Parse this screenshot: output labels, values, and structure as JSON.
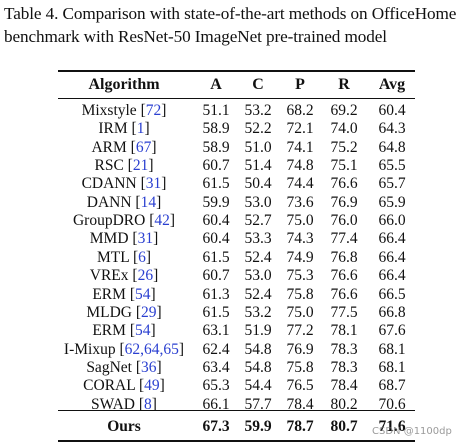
{
  "caption": {
    "line1": "Table 4. Comparison with state-of-the-art methods on OfficeHome",
    "line2": "benchmark with ResNet-50 ImageNet pre-trained model"
  },
  "headers": [
    "Algorithm",
    "A",
    "C",
    "P",
    "R",
    "Avg"
  ],
  "rows": [
    {
      "name": "Mixstyle",
      "ref": "72",
      "values": [
        "51.1",
        "53.2",
        "68.2",
        "69.2",
        "60.4"
      ]
    },
    {
      "name": "IRM",
      "ref": "1",
      "values": [
        "58.9",
        "52.2",
        "72.1",
        "74.0",
        "64.3"
      ]
    },
    {
      "name": "ARM",
      "ref": "67",
      "values": [
        "58.9",
        "51.0",
        "74.1",
        "75.2",
        "64.8"
      ]
    },
    {
      "name": "RSC",
      "ref": "21",
      "values": [
        "60.7",
        "51.4",
        "74.8",
        "75.1",
        "65.5"
      ]
    },
    {
      "name": "CDANN",
      "ref": "31",
      "values": [
        "61.5",
        "50.4",
        "74.4",
        "76.6",
        "65.7"
      ]
    },
    {
      "name": "DANN",
      "ref": "14",
      "values": [
        "59.9",
        "53.0",
        "73.6",
        "76.9",
        "65.9"
      ]
    },
    {
      "name": "GroupDRO",
      "ref": "42",
      "values": [
        "60.4",
        "52.7",
        "75.0",
        "76.0",
        "66.0"
      ]
    },
    {
      "name": "MMD",
      "ref": "31",
      "values": [
        "60.4",
        "53.3",
        "74.3",
        "77.4",
        "66.4"
      ]
    },
    {
      "name": "MTL",
      "ref": "6",
      "values": [
        "61.5",
        "52.4",
        "74.9",
        "76.8",
        "66.4"
      ]
    },
    {
      "name": "VREx",
      "ref": "26",
      "values": [
        "60.7",
        "53.0",
        "75.3",
        "76.6",
        "66.4"
      ]
    },
    {
      "name": "ERM",
      "ref": "54",
      "values": [
        "61.3",
        "52.4",
        "75.8",
        "76.6",
        "66.5"
      ]
    },
    {
      "name": "MLDG",
      "ref": "29",
      "values": [
        "61.5",
        "53.2",
        "75.0",
        "77.5",
        "66.8"
      ]
    },
    {
      "name": "ERM",
      "ref": "54",
      "values": [
        "63.1",
        "51.9",
        "77.2",
        "78.1",
        "67.6"
      ]
    },
    {
      "name": "I-Mixup",
      "ref": "62,64,65",
      "values": [
        "62.4",
        "54.8",
        "76.9",
        "78.3",
        "68.1"
      ]
    },
    {
      "name": "SagNet",
      "ref": "36",
      "values": [
        "63.4",
        "54.8",
        "75.8",
        "78.3",
        "68.1"
      ]
    },
    {
      "name": "CORAL",
      "ref": "49",
      "values": [
        "65.3",
        "54.4",
        "76.5",
        "78.4",
        "68.7"
      ]
    },
    {
      "name": "SWAD",
      "ref": "8",
      "values": [
        "66.1",
        "57.7",
        "78.4",
        "80.2",
        "70.6"
      ]
    }
  ],
  "ours": {
    "name": "Ours",
    "values": [
      "67.3",
      "59.9",
      "78.7",
      "80.7",
      "71.6"
    ]
  },
  "watermark": "CSDN @1100dp"
}
